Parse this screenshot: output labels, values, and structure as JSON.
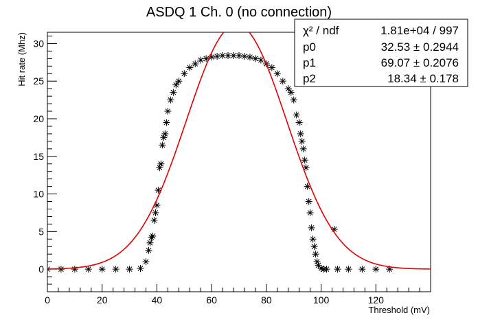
{
  "chart_data": {
    "type": "scatter",
    "title": "ASDQ 1 Ch. 0 (no connection)",
    "xlabel": "Threshold (mV)",
    "ylabel": "Hit rate (Mhz)",
    "xlim": [
      0,
      140
    ],
    "ylim": [
      -3,
      31.5
    ],
    "x_ticks": [
      0,
      20,
      40,
      60,
      80,
      100,
      120
    ],
    "y_ticks": [
      0,
      5,
      10,
      15,
      20,
      25,
      30
    ],
    "grid": false,
    "legend": "none",
    "series": [
      {
        "marker": "asterisk",
        "color": "#000000",
        "x": [
          0,
          5,
          10,
          15,
          20,
          25,
          30,
          34,
          36,
          37,
          37.5,
          38,
          38.5,
          39,
          39.5,
          40,
          40.5,
          41,
          41.5,
          42,
          42.5,
          43,
          43.5,
          44,
          45,
          46,
          47,
          48,
          50,
          52,
          54,
          56,
          58,
          60,
          62,
          64,
          66,
          68,
          70,
          72,
          74,
          76,
          78,
          80,
          82,
          84,
          86,
          88,
          89,
          90,
          91,
          92,
          92.5,
          93,
          93.5,
          94,
          94.5,
          95,
          95.5,
          96,
          96.5,
          97,
          97.5,
          98,
          98.5,
          99,
          100,
          101,
          102,
          104.8,
          106,
          110,
          115,
          120,
          125
        ],
        "y": [
          0,
          0,
          0,
          0,
          0,
          0,
          0,
          0.1,
          1,
          2.5,
          3.5,
          4.2,
          4.4,
          6.5,
          7.5,
          8.5,
          10.5,
          13.5,
          14,
          16.5,
          17.5,
          18,
          19.5,
          21,
          22.5,
          23.5,
          24.5,
          25,
          26,
          26.8,
          27.3,
          27.8,
          28,
          28.2,
          28.3,
          28.4,
          28.4,
          28.4,
          28.4,
          28.3,
          28.2,
          28,
          27.8,
          27.3,
          26.8,
          26,
          25,
          24,
          23.5,
          22.5,
          20.5,
          19.5,
          18,
          17,
          16,
          14.5,
          13.5,
          11,
          9,
          7.5,
          5.5,
          4,
          3,
          2,
          1,
          0.5,
          0.1,
          0,
          0,
          5.3,
          0,
          0,
          0,
          0,
          0
        ]
      }
    ],
    "fit": {
      "color": "#e00000",
      "function": "gaus",
      "p0": 32.53,
      "p1": 69.07,
      "p2": 18.34,
      "x_range": [
        0,
        140
      ]
    },
    "stats_box": {
      "rows": [
        {
          "label": "χ² / ndf",
          "value": "1.81e+04 / 997"
        },
        {
          "label": "p0",
          "value": "32.53 ± 0.2944"
        },
        {
          "label": "p1",
          "value": "69.07 ± 0.2076"
        },
        {
          "label": "p2",
          "value": "18.34 ± 0.178"
        }
      ]
    }
  }
}
